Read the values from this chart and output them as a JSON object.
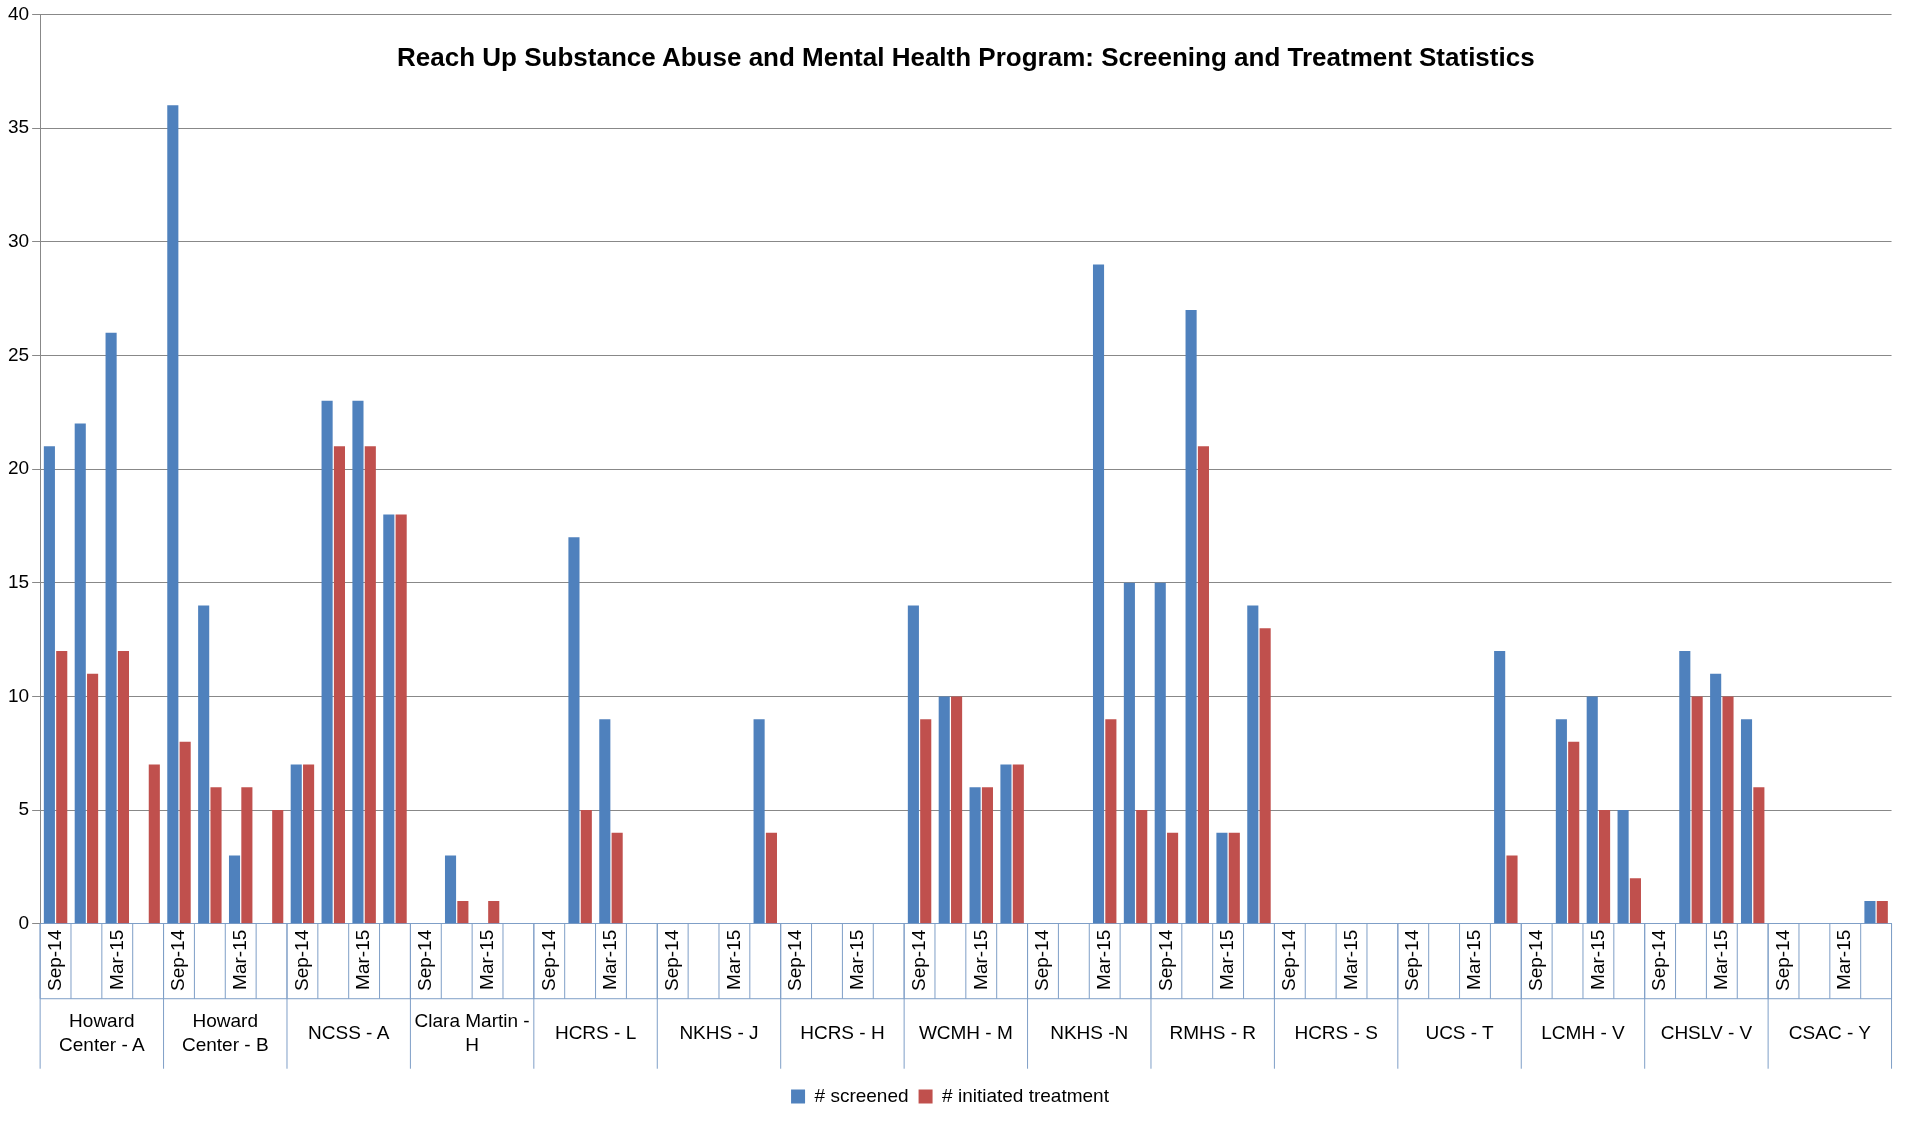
{
  "chart_data": {
    "type": "bar",
    "title": "Reach Up Substance Abuse and Mental Health Program: Screening and Treatment Statistics",
    "categories": [
      "Sep-14",
      null,
      "Mar-15",
      null,
      "Sep-14",
      null,
      "Mar-15",
      null,
      "Sep-14",
      null,
      "Mar-15",
      null,
      "Sep-14",
      null,
      "Mar-15",
      null,
      "Sep-14",
      null,
      "Mar-15",
      null,
      "Sep-14",
      null,
      "Mar-15",
      null,
      "Sep-14",
      null,
      "Mar-15",
      null,
      "Sep-14",
      null,
      "Mar-15",
      null,
      "Sep-14",
      null,
      "Mar-15",
      null,
      "Sep-14",
      null,
      "Mar-15",
      null,
      "Sep-14",
      null,
      "Mar-15",
      null,
      "Sep-14",
      null,
      "Mar-15",
      null,
      "Sep-14",
      null,
      "Mar-15",
      null,
      "Sep-14",
      null,
      "Mar-15",
      null,
      "Sep-14",
      null,
      "Mar-15",
      null
    ],
    "series": [
      {
        "name": "# screened",
        "color": "#4f81bd",
        "values": [
          21,
          22,
          26,
          null,
          36,
          14,
          3,
          null,
          7,
          23,
          23,
          18,
          null,
          3,
          null,
          null,
          null,
          17,
          9,
          null,
          null,
          null,
          null,
          9,
          null,
          null,
          null,
          null,
          14,
          10,
          6,
          7,
          null,
          null,
          29,
          15,
          15,
          27,
          4,
          14,
          null,
          null,
          null,
          null,
          null,
          null,
          null,
          12,
          null,
          9,
          10,
          5,
          null,
          12,
          11,
          9,
          null,
          null,
          null,
          1
        ]
      },
      {
        "name": "# initiated treatment",
        "color": "#c0504d",
        "values": [
          12,
          11,
          12,
          7,
          8,
          6,
          6,
          5,
          7,
          21,
          21,
          18,
          null,
          1,
          1,
          null,
          null,
          5,
          4,
          null,
          null,
          null,
          null,
          4,
          null,
          null,
          null,
          null,
          9,
          10,
          6,
          7,
          null,
          null,
          9,
          5,
          4,
          21,
          4,
          13,
          null,
          null,
          null,
          null,
          null,
          null,
          null,
          3,
          null,
          8,
          5,
          2,
          null,
          10,
          10,
          6,
          null,
          null,
          null,
          1
        ]
      }
    ],
    "annotations": [
      "Howard Center - A",
      "Howard Center - B",
      "NCSS - A",
      "Clara Martin - H",
      "HCRS - L",
      "NKHS - J",
      "HCRS - H",
      "WCMH - M",
      "NKHS -N",
      "RMHS - R",
      "HCRS - S",
      "UCS - T",
      "LCMH - V",
      "CHSLV - V",
      "CSAC - Y"
    ],
    "ylim": [
      0,
      40
    ],
    "yticks": [
      0,
      5,
      10,
      15,
      20,
      25,
      30,
      35,
      40
    ],
    "grid": "y",
    "legend": "bottom"
  }
}
